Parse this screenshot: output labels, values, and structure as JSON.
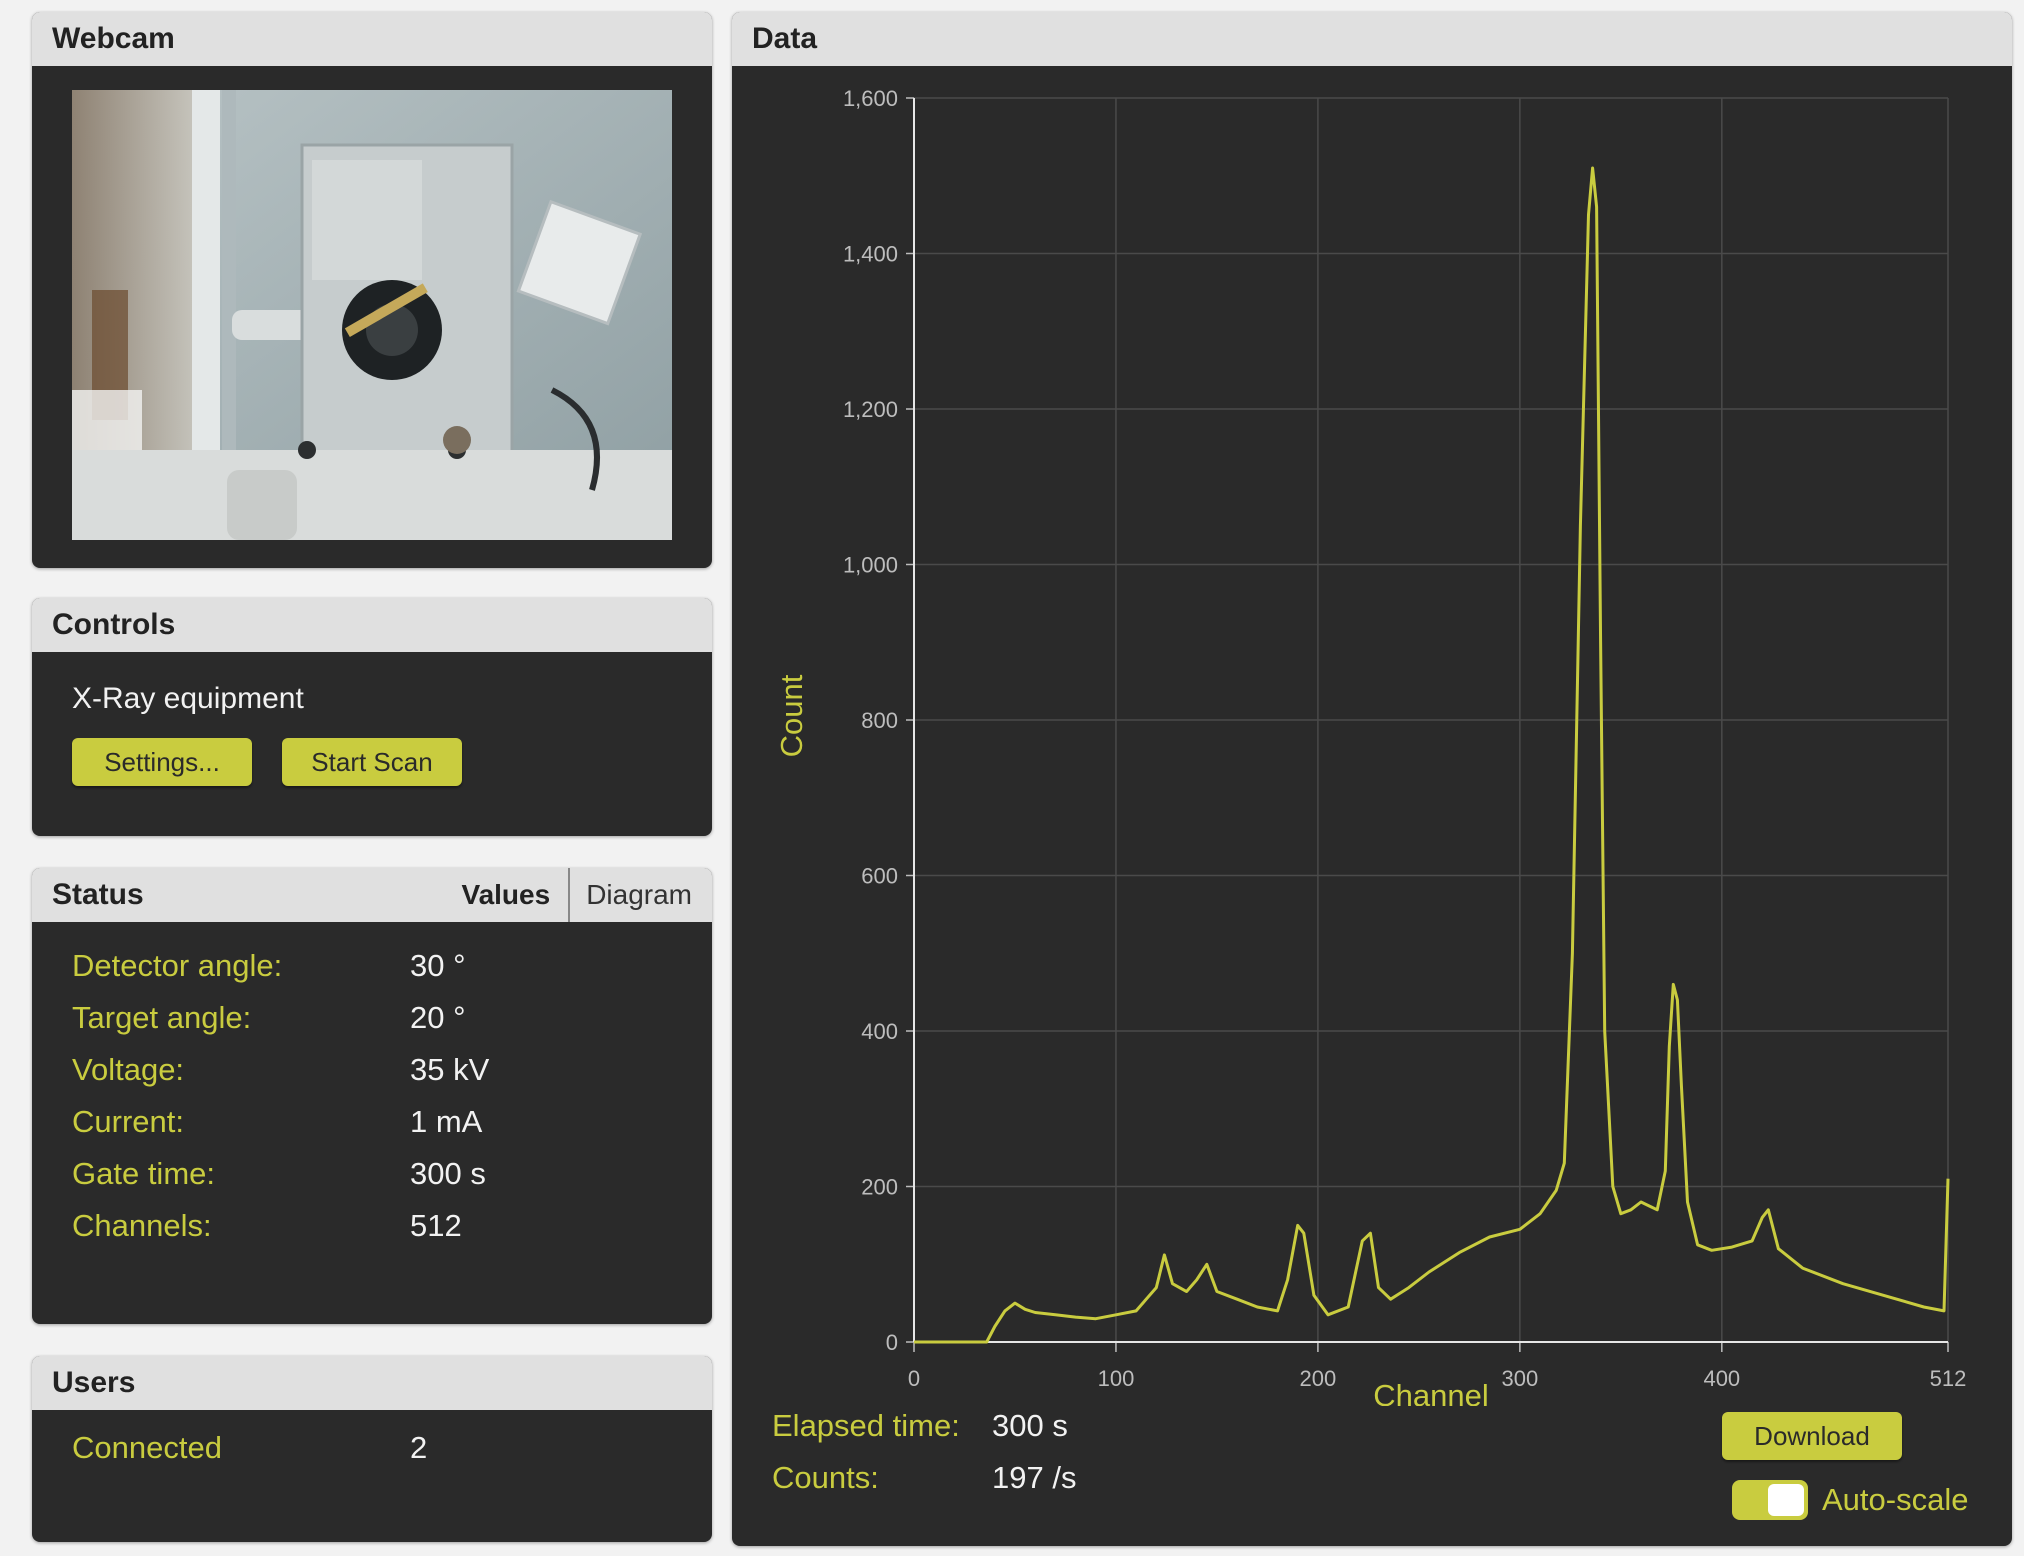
{
  "webcam": {
    "title": "Webcam"
  },
  "controls": {
    "title": "Controls",
    "equipment_label": "X-Ray equipment",
    "settings_button": "Settings...",
    "start_scan_button": "Start Scan"
  },
  "status": {
    "title": "Status",
    "tab_values": "Values",
    "tab_diagram": "Diagram",
    "rows": [
      {
        "label": "Detector angle:",
        "value": "30 °"
      },
      {
        "label": "Target angle:",
        "value": "20 °"
      },
      {
        "label": "Voltage:",
        "value": "35 kV"
      },
      {
        "label": "Current:",
        "value": "1 mA"
      },
      {
        "label": "Gate time:",
        "value": "300 s"
      },
      {
        "label": "Channels:",
        "value": "512"
      }
    ]
  },
  "users": {
    "title": "Users",
    "connected_label": "Connected",
    "connected_value": "2"
  },
  "data_panel": {
    "title": "Data",
    "elapsed_label": "Elapsed time:",
    "elapsed_value": "300 s",
    "counts_label": "Counts:",
    "counts_value": "197 /s",
    "download_button": "Download",
    "autoscale_label": "Auto-scale",
    "autoscale_on": true
  },
  "colors": {
    "accent": "#c9cc3f",
    "panel_bg": "#2a2a2a",
    "header_bg": "#e0e0e0"
  },
  "chart_data": {
    "type": "line",
    "xlabel": "Channel",
    "ylabel": "Count",
    "xlim": [
      0,
      512
    ],
    "ylim": [
      0,
      1600
    ],
    "x_ticks": [
      "0",
      "100",
      "200",
      "300",
      "400",
      "512"
    ],
    "x_tick_values": [
      0,
      100,
      200,
      300,
      400,
      512
    ],
    "y_ticks": [
      "0",
      "200",
      "400",
      "600",
      "800",
      "1,000",
      "1,200",
      "1,400",
      "1,600"
    ],
    "y_tick_values": [
      0,
      200,
      400,
      600,
      800,
      1000,
      1200,
      1400,
      1600
    ],
    "grid": true,
    "series": [
      {
        "color": "#c9cc3f",
        "x": [
          0,
          20,
          36,
          40,
          45,
          50,
          55,
          60,
          70,
          80,
          90,
          100,
          110,
          115,
          120,
          124,
          128,
          135,
          140,
          145,
          150,
          160,
          170,
          180,
          185,
          190,
          193,
          198,
          205,
          215,
          222,
          226,
          230,
          236,
          245,
          255,
          270,
          285,
          300,
          310,
          318,
          322,
          326,
          330,
          334,
          336,
          338,
          340,
          342,
          346,
          350,
          355,
          360,
          368,
          372,
          374,
          376,
          378,
          380,
          383,
          388,
          395,
          405,
          415,
          420,
          423,
          428,
          440,
          460,
          480,
          500,
          510,
          512
        ],
        "y": [
          0,
          0,
          0,
          20,
          40,
          50,
          42,
          38,
          35,
          32,
          30,
          35,
          40,
          55,
          70,
          112,
          75,
          65,
          80,
          100,
          65,
          55,
          45,
          40,
          80,
          150,
          140,
          60,
          35,
          45,
          130,
          140,
          70,
          55,
          70,
          90,
          115,
          135,
          145,
          165,
          195,
          230,
          500,
          1050,
          1450,
          1510,
          1460,
          900,
          400,
          200,
          165,
          170,
          180,
          170,
          220,
          380,
          460,
          440,
          330,
          180,
          125,
          118,
          122,
          130,
          160,
          170,
          120,
          95,
          75,
          60,
          45,
          40,
          210
        ]
      }
    ]
  }
}
